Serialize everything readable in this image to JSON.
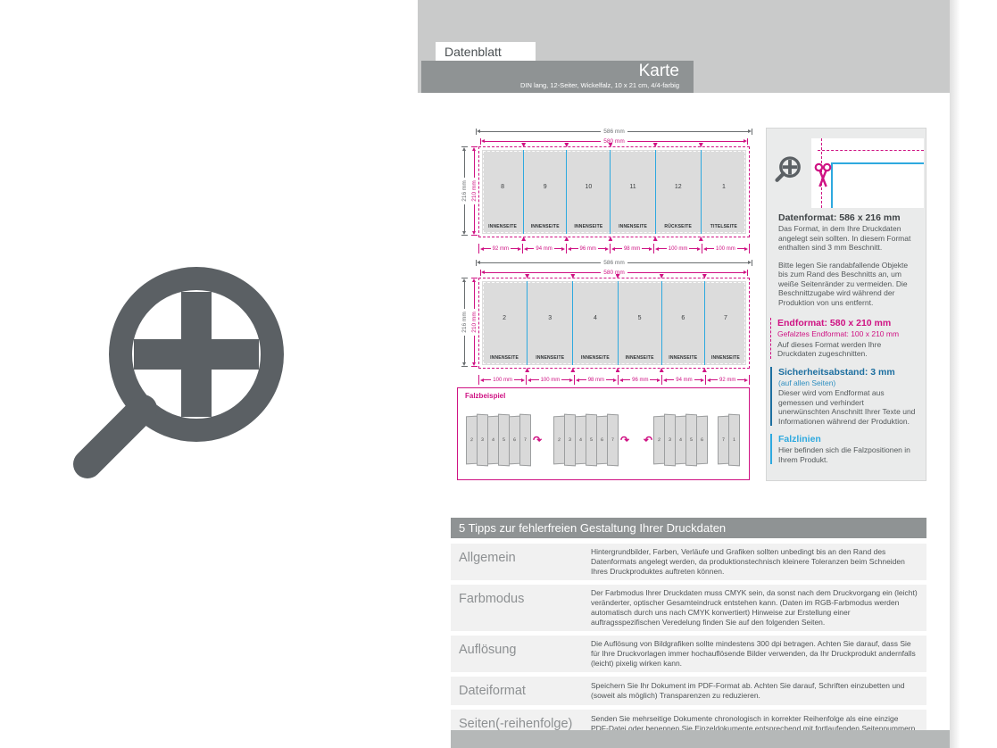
{
  "header": {
    "tab": "Datenblatt",
    "title": "Karte",
    "subtitle": "DIN lang, 12-Seiter, Wickelfalz, 10 x 21 cm, 4/4-farbig"
  },
  "colors": {
    "magenta": "#cf1283",
    "fold_line_blue": "#2ea9df",
    "safety_blue": "#1d6fa0",
    "band_gray": "#8f9394",
    "panel_gray": "#dcdcdc",
    "magnifier_gray": "#5b6064"
  },
  "diagrams": [
    {
      "width_outer": "586 mm",
      "width_inner": "580 mm",
      "height_outer": "216 mm",
      "height_inner": "210 mm",
      "panels": [
        {
          "num": "8",
          "label": "INNENSEITE",
          "mm": 92
        },
        {
          "num": "9",
          "label": "INNENSEITE",
          "mm": 94
        },
        {
          "num": "10",
          "label": "INNENSEITE",
          "mm": 96
        },
        {
          "num": "11",
          "label": "INNENSEITE",
          "mm": 98
        },
        {
          "num": "12",
          "label": "RÜCKSEITE",
          "mm": 100
        },
        {
          "num": "1",
          "label": "TITELSEITE",
          "mm": 100
        }
      ],
      "measures": [
        "92 mm",
        "94 mm",
        "96 mm",
        "98 mm",
        "100 mm",
        "100 mm"
      ]
    },
    {
      "width_outer": "586 mm",
      "width_inner": "580 mm",
      "height_outer": "216 mm",
      "height_inner": "210 mm",
      "panels": [
        {
          "num": "2",
          "label": "INNENSEITE",
          "mm": 100
        },
        {
          "num": "3",
          "label": "INNENSEITE",
          "mm": 100
        },
        {
          "num": "4",
          "label": "INNENSEITE",
          "mm": 98
        },
        {
          "num": "5",
          "label": "INNENSEITE",
          "mm": 96
        },
        {
          "num": "6",
          "label": "INNENSEITE",
          "mm": 94
        },
        {
          "num": "7",
          "label": "INNENSEITE",
          "mm": 92
        }
      ],
      "measures": [
        "100 mm",
        "100 mm",
        "98 mm",
        "96 mm",
        "94 mm",
        "92 mm"
      ]
    }
  ],
  "falzbeispiel": {
    "label": "Falzbeispiel",
    "stages": [
      {
        "panels": [
          "2",
          "3",
          "4",
          "5",
          "6",
          "7"
        ],
        "arrow": "right"
      },
      {
        "panels": [
          "2",
          "3",
          "4",
          "5",
          "6",
          "7"
        ],
        "arrow": "right"
      },
      {
        "panels": [
          "2",
          "3",
          "4",
          "5",
          "6"
        ],
        "arrow": "left"
      },
      {
        "panels": [
          "7",
          "1"
        ],
        "arrow": "none"
      }
    ]
  },
  "sidebar": {
    "datenformat": {
      "heading": "Datenformat: 586 x 216 mm",
      "body": "Das Format, in dem Ihre Druckdaten angelegt sein sollten. In diesem Format enthalten sind 3 mm Beschnitt.",
      "body2": "Bitte legen Sie randabfallende Objekte bis zum Rand des Beschnitts an, um weiße Seitenränder zu vermeiden. Die Beschnittzugabe wird während der Produktion von uns entfernt."
    },
    "endformat": {
      "heading": "Endformat: 580 x 210 mm",
      "sub": "Gefalztes Endformat: 100 x 210 mm",
      "body": "Auf dieses Format werden Ihre Druckdaten zugeschnitten."
    },
    "sicherheitsabstand": {
      "heading": "Sicherheitsabstand: 3 mm",
      "sub": "(auf allen Seiten)",
      "body": "Dieser wird vom Endformat aus gemessen und verhindert unerwünschten Anschnitt Ihrer Texte und Informationen während der Produktion."
    },
    "falzlinien": {
      "heading": "Falzlinien",
      "body": "Hier befinden sich die Falzpositionen in Ihrem Produkt."
    }
  },
  "tips": {
    "header": "5 Tipps zur fehlerfreien Gestaltung Ihrer Druckdaten",
    "rows": [
      {
        "label": "Allgemein",
        "text": "Hintergrundbilder, Farben, Verläufe und Grafiken sollten unbedingt bis an den Rand des Datenformats angelegt werden, da produktionstechnisch kleinere Toleranzen beim Schneiden Ihres Druckproduktes auftreten können."
      },
      {
        "label": "Farbmodus",
        "text": "Der Farbmodus Ihrer Druckdaten muss CMYK sein, da sonst nach dem Druckvorgang ein (leicht) veränderter, optischer Gesamteindruck entstehen kann. (Daten im RGB-Farbmodus werden automatisch durch uns nach CMYK konvertiert) Hinweise zur Erstellung einer auftragsspezifischen Veredelung finden Sie auf den folgenden Seiten."
      },
      {
        "label": "Auflösung",
        "text": "Die Auflösung von Bildgrafiken sollte mindestens 300 dpi betragen. Achten Sie darauf, dass Sie für Ihre Druckvorlagen immer hochauflösende Bilder verwenden, da Ihr Druckprodukt andernfalls (leicht) pixelig wirken kann."
      },
      {
        "label": "Dateiformat",
        "text": "Speichern Sie Ihr Dokument im PDF-Format ab. Achten Sie darauf, Schriften einzubetten und (soweit als möglich) Transparenzen zu reduzieren."
      },
      {
        "label": "Seiten(-reihenfolge)",
        "text": "Senden Sie mehrseitige Dokumente chronologisch in korrekter Reihenfolge als eine einzige PDF-Datei oder benennen Sie Einzeldokumente entsprechend mit fortlaufenden Seitennummern."
      }
    ]
  }
}
